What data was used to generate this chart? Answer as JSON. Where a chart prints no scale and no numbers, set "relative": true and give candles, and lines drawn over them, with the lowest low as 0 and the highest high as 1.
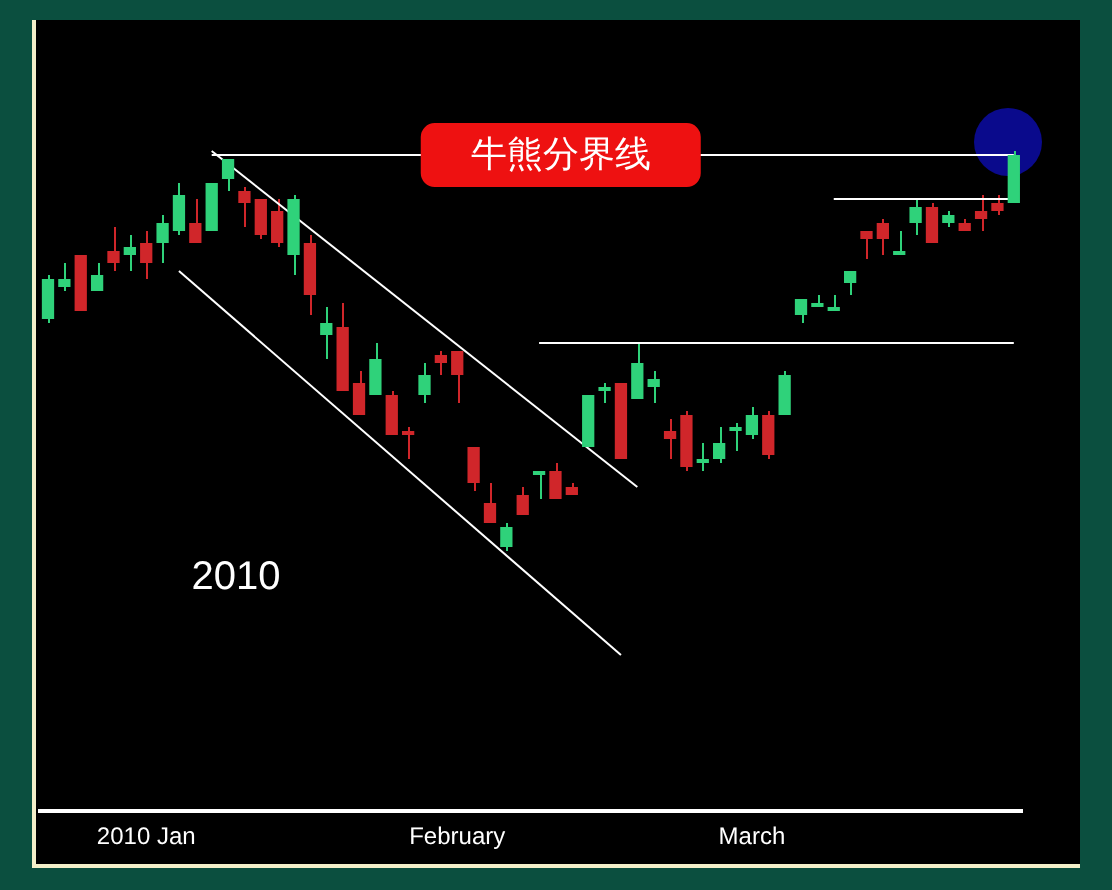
{
  "chart_data": {
    "type": "candlestick",
    "relative": true,
    "tick_labels": "x",
    "grid": false,
    "legend": false,
    "marker": "none",
    "categories": [
      null,
      null,
      null,
      null,
      null,
      null,
      "2010 Jan",
      null,
      null,
      null,
      null,
      null,
      null,
      null,
      null,
      null,
      null,
      null,
      null,
      null,
      null,
      null,
      null,
      null,
      null,
      "February",
      null,
      null,
      null,
      null,
      null,
      null,
      null,
      null,
      null,
      null,
      null,
      null,
      null,
      null,
      null,
      null,
      null,
      "March",
      null,
      null,
      null,
      null,
      null,
      null,
      null,
      null,
      null,
      null,
      null,
      null,
      null,
      null,
      null,
      null
    ],
    "ohlc": [
      [
        0.58,
        0.69,
        0.57,
        0.68
      ],
      [
        0.66,
        0.72,
        0.65,
        0.68
      ],
      [
        0.74,
        0.74,
        0.6,
        0.6
      ],
      [
        0.65,
        0.72,
        0.65,
        0.69
      ],
      [
        0.75,
        0.81,
        0.7,
        0.72
      ],
      [
        0.74,
        0.79,
        0.7,
        0.76
      ],
      [
        0.77,
        0.8,
        0.68,
        0.72
      ],
      [
        0.77,
        0.84,
        0.72,
        0.82
      ],
      [
        0.8,
        0.92,
        0.79,
        0.89
      ],
      [
        0.82,
        0.88,
        0.77,
        0.77
      ],
      [
        0.8,
        0.92,
        0.8,
        0.92
      ],
      [
        0.93,
        0.98,
        0.9,
        0.98
      ],
      [
        0.9,
        0.91,
        0.81,
        0.87
      ],
      [
        0.88,
        0.88,
        0.78,
        0.79
      ],
      [
        0.85,
        0.88,
        0.76,
        0.77
      ],
      [
        0.74,
        0.89,
        0.69,
        0.88
      ],
      [
        0.77,
        0.79,
        0.59,
        0.64
      ],
      [
        0.54,
        0.61,
        0.48,
        0.57
      ],
      [
        0.56,
        0.62,
        0.4,
        0.4
      ],
      [
        0.42,
        0.45,
        0.34,
        0.34
      ],
      [
        0.39,
        0.52,
        0.39,
        0.48
      ],
      [
        0.39,
        0.4,
        0.29,
        0.29
      ],
      [
        0.3,
        0.31,
        0.23,
        0.29
      ],
      [
        0.39,
        0.47,
        0.37,
        0.44
      ],
      [
        0.49,
        0.5,
        0.44,
        0.47
      ],
      [
        0.5,
        0.5,
        0.37,
        0.44
      ],
      [
        0.26,
        0.26,
        0.15,
        0.17
      ],
      [
        0.12,
        0.17,
        0.07,
        0.07
      ],
      [
        0.01,
        0.07,
        0,
        0.06
      ],
      [
        0.14,
        0.16,
        0.09,
        0.09
      ],
      [
        0.19,
        0.2,
        0.13,
        0.2
      ],
      [
        0.2,
        0.22,
        0.13,
        0.13
      ],
      [
        0.16,
        0.17,
        0.14,
        0.14
      ],
      [
        0.26,
        0.39,
        0.26,
        0.39
      ],
      [
        0.4,
        0.42,
        0.37,
        0.41
      ],
      [
        0.42,
        0.42,
        0.23,
        0.23
      ],
      [
        0.38,
        0.52,
        0.38,
        0.47
      ],
      [
        0.41,
        0.45,
        0.37,
        0.43
      ],
      [
        0.3,
        0.33,
        0.23,
        0.28
      ],
      [
        0.34,
        0.35,
        0.2,
        0.21
      ],
      [
        0.22,
        0.27,
        0.2,
        0.23
      ],
      [
        0.23,
        0.31,
        0.22,
        0.27
      ],
      [
        0.3,
        0.32,
        0.25,
        0.31
      ],
      [
        0.29,
        0.36,
        0.28,
        0.34
      ],
      [
        0.34,
        0.35,
        0.23,
        0.24
      ],
      [
        0.34,
        0.45,
        0.34,
        0.44
      ],
      [
        0.59,
        0.63,
        0.57,
        0.63
      ],
      [
        0.61,
        0.64,
        0.61,
        0.62
      ],
      [
        0.6,
        0.64,
        0.6,
        0.61
      ],
      [
        0.67,
        0.7,
        0.64,
        0.7
      ],
      [
        0.8,
        0.8,
        0.73,
        0.78
      ],
      [
        0.82,
        0.83,
        0.74,
        0.78
      ],
      [
        0.74,
        0.8,
        0.74,
        0.75
      ],
      [
        0.82,
        0.88,
        0.79,
        0.86
      ],
      [
        0.86,
        0.87,
        0.77,
        0.77
      ],
      [
        0.82,
        0.85,
        0.81,
        0.84
      ],
      [
        0.82,
        0.83,
        0.8,
        0.8
      ],
      [
        0.85,
        0.89,
        0.8,
        0.83
      ],
      [
        0.87,
        0.89,
        0.84,
        0.85
      ],
      [
        0.87,
        1,
        0.87,
        0.99
      ]
    ],
    "colors": [
      "#2fd27a",
      "#2fd27a",
      "#d0262a",
      "#2fd27a",
      "#d0262a",
      "#2fd27a",
      "#d0262a",
      "#2fd27a",
      "#2fd27a",
      "#d0262a",
      "#2fd27a",
      "#2fd27a",
      "#d0262a",
      "#d0262a",
      "#d0262a",
      "#2fd27a",
      "#d0262a",
      "#2fd27a",
      "#d0262a",
      "#d0262a",
      "#2fd27a",
      "#d0262a",
      "#d0262a",
      "#2fd27a",
      "#d0262a",
      "#d0262a",
      "#d0262a",
      "#d0262a",
      "#2fd27a",
      "#d0262a",
      "#2fd27a",
      "#d0262a",
      "#d0262a",
      "#2fd27a",
      "#2fd27a",
      "#d0262a",
      "#2fd27a",
      "#2fd27a",
      "#d0262a",
      "#d0262a",
      "#2fd27a",
      "#2fd27a",
      "#2fd27a",
      "#2fd27a",
      "#d0262a",
      "#2fd27a",
      "#2fd27a",
      "#2fd27a",
      "#2fd27a",
      "#2fd27a",
      "#d0262a",
      "#d0262a",
      "#2fd27a",
      "#2fd27a",
      "#d0262a",
      "#2fd27a",
      "#d0262a",
      "#d0262a",
      "#d0262a",
      "#2fd27a"
    ],
    "series": [
      {
        "type": "line",
        "name": "牛熊分界线",
        "color": "#ffffff",
        "values": [
          null,
          null,
          null,
          null,
          null,
          null,
          null,
          null,
          null,
          null,
          0.99,
          null,
          null,
          null,
          null,
          null,
          null,
          null,
          null,
          null,
          null,
          null,
          null,
          null,
          null,
          null,
          null,
          null,
          null,
          null,
          null,
          null,
          null,
          null,
          null,
          null,
          null,
          null,
          null,
          null,
          null,
          null,
          null,
          null,
          null,
          null,
          null,
          null,
          null,
          null,
          null,
          null,
          null,
          null,
          null,
          null,
          null,
          null,
          null,
          0.99
        ]
      },
      {
        "type": "line",
        "color": "#ffffff",
        "values": [
          null,
          null,
          null,
          null,
          null,
          null,
          null,
          null,
          null,
          null,
          1,
          null,
          null,
          null,
          null,
          null,
          null,
          null,
          null,
          null,
          null,
          null,
          null,
          null,
          null,
          null,
          null,
          null,
          null,
          null,
          null,
          null,
          null,
          null,
          null,
          null,
          0.16,
          null,
          null,
          null,
          null,
          null,
          null,
          null,
          null,
          null,
          null,
          null,
          null,
          null,
          null,
          null,
          null,
          null,
          null,
          null,
          null,
          null,
          null,
          null
        ]
      },
      {
        "type": "line",
        "color": "#ffffff",
        "values": [
          null,
          null,
          null,
          null,
          null,
          null,
          null,
          null,
          0.7,
          null,
          null,
          null,
          null,
          null,
          null,
          null,
          null,
          null,
          null,
          null,
          null,
          null,
          null,
          null,
          null,
          null,
          null,
          null,
          null,
          null,
          null,
          null,
          null,
          null,
          null,
          -0.26,
          null,
          null,
          null,
          null,
          null,
          null,
          null,
          null,
          null,
          null,
          null,
          null,
          null,
          null,
          null,
          null,
          null,
          null,
          null,
          null,
          null,
          null,
          null,
          null
        ]
      },
      {
        "type": "line",
        "color": "#ffffff",
        "values": [
          null,
          null,
          null,
          null,
          null,
          null,
          null,
          null,
          null,
          null,
          null,
          null,
          null,
          null,
          null,
          null,
          null,
          null,
          null,
          null,
          null,
          null,
          null,
          null,
          null,
          null,
          null,
          null,
          null,
          null,
          0.52,
          null,
          null,
          null,
          null,
          null,
          null,
          null,
          null,
          null,
          null,
          null,
          null,
          null,
          null,
          null,
          null,
          null,
          null,
          null,
          null,
          null,
          null,
          null,
          null,
          null,
          null,
          null,
          null,
          0.52
        ]
      },
      {
        "type": "line",
        "color": "#ffffff",
        "values": [
          null,
          null,
          null,
          null,
          null,
          null,
          null,
          null,
          null,
          null,
          null,
          null,
          null,
          null,
          null,
          null,
          null,
          null,
          null,
          null,
          null,
          null,
          null,
          null,
          null,
          null,
          null,
          null,
          null,
          null,
          null,
          null,
          null,
          null,
          null,
          null,
          null,
          null,
          null,
          null,
          null,
          null,
          null,
          null,
          null,
          null,
          null,
          null,
          0.88,
          null,
          null,
          null,
          null,
          null,
          null,
          null,
          null,
          null,
          null,
          0.88
        ]
      }
    ],
    "annotations": [
      "2010"
    ]
  }
}
